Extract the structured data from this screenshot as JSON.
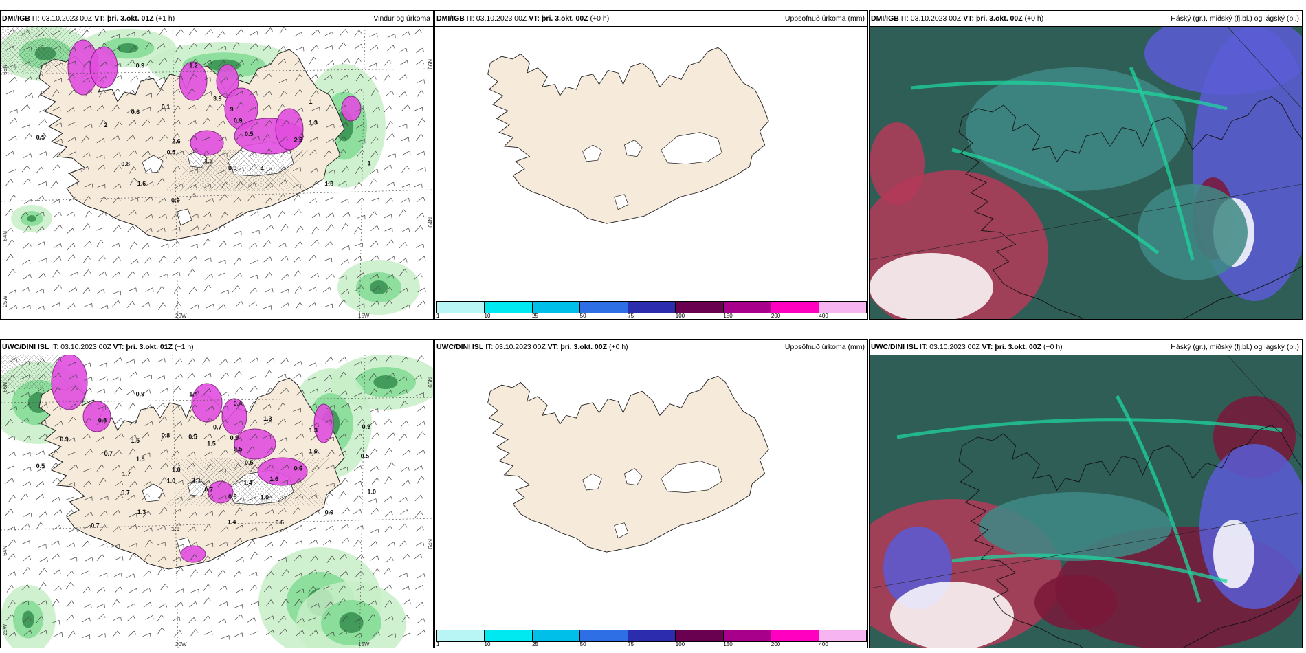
{
  "panels": [
    {
      "model": "DMI/IGB",
      "it_label": "IT:",
      "it": "03.10.2023 00Z",
      "vt_label": "VT:",
      "vt": "þri. 3.okt. 01Z",
      "lead": "(+1 h)",
      "title": "Vindur og úrkoma",
      "axis": {
        "lat1": "66N",
        "lat2": "64N",
        "lon0": "25W",
        "lon1": "20W",
        "lon2": "15W"
      }
    },
    {
      "model": "DMI/IGB",
      "it_label": "IT:",
      "it": "03.10.2023 00Z",
      "vt_label": "VT:",
      "vt": "þri. 3.okt. 00Z",
      "lead": "(+0 h)",
      "title": "Uppsöfnuð úrkoma (mm)"
    },
    {
      "model": "DMI/IGB",
      "it_label": "IT:",
      "it": "03.10.2023 00Z",
      "vt_label": "VT:",
      "vt": "þri. 3.okt. 00Z",
      "lead": "(+0 h)",
      "title": "Háský (gr.), miðský (fj.bl.) og lágský (bl.)"
    },
    {
      "model": "UWC/DINI ISL",
      "it_label": "IT:",
      "it": "03.10.2023 00Z",
      "vt_label": "VT:",
      "vt": "þri. 3.okt. 01Z",
      "lead": "(+1 h)",
      "title": "",
      "axis": {
        "lat1": "66N",
        "lat2": "64N",
        "lon0": "25W",
        "lon1": "20W",
        "lon2": "15W"
      }
    },
    {
      "model": "UWC/DINI ISL",
      "it_label": "IT:",
      "it": "03.10.2023 00Z",
      "vt_label": "VT:",
      "vt": "þri. 3.okt. 00Z",
      "lead": "(+0 h)",
      "title": "Uppsöfnuð úrkoma (mm)"
    },
    {
      "model": "UWC/DINI ISL",
      "it_label": "IT:",
      "it": "03.10.2023 00Z",
      "vt_label": "VT:",
      "vt": "þri. 3.okt. 00Z",
      "lead": "(+0 h)",
      "title": "Háský (gr.), miðský (fj.bl.) og lágský (bl.)"
    }
  ],
  "colorbar": {
    "ticks": [
      "1",
      "10",
      "25",
      "50",
      "75",
      "100",
      "150",
      "200",
      "400"
    ],
    "colors": [
      "#b8f6f6",
      "#00e8f0",
      "#00c0ea",
      "#2f6fe6",
      "#2c2cae",
      "#6a0050",
      "#a8008a",
      "#ff00c0",
      "#f6b4f0"
    ]
  },
  "precip_labels_top": [
    "0.5",
    "0.5",
    "3.9",
    "4",
    "2",
    "1",
    "0.9",
    "0.9",
    "1",
    "2.6",
    "9",
    "0.9",
    "0.6",
    "1.3",
    "1.6",
    "1.2",
    "1.6",
    "0.5",
    "0.9",
    "1.3",
    "0.1",
    "2.5",
    "0.8"
  ],
  "precip_labels_bottom": [
    "0.5",
    "1.0",
    "0.7",
    "1.0",
    "0.7",
    "1.3",
    "1.9",
    "0.9",
    "1.0",
    "1.0",
    "0.9",
    "0.6",
    "1.5",
    "1.6",
    "1.3",
    "1.4",
    "0.9",
    "0.5",
    "0.5",
    "0.7",
    "0.8",
    "0.6",
    "0.7",
    "0.4",
    "0.6",
    "0.9",
    "0.9",
    "1.1",
    "0.5",
    "1.6",
    "1.7",
    "1.3",
    "1.4",
    "0.8",
    "0.5",
    "0.7",
    "1.5",
    "1.4",
    "1.5"
  ],
  "colors": {
    "land": "#f6eadb",
    "green_light": "#c8eec8",
    "green_mid": "#7dd990",
    "green_dark": "#2f8a4a",
    "magenta": "#e24ee0",
    "cloud_high": "#2f5e56",
    "cloud_mid": "#3e8a86",
    "cloud_low": "#5a5cd6",
    "cloud_red": "#b33a58",
    "cloud_maroon": "#7a1838",
    "cloud_teal": "#1fd49e"
  }
}
